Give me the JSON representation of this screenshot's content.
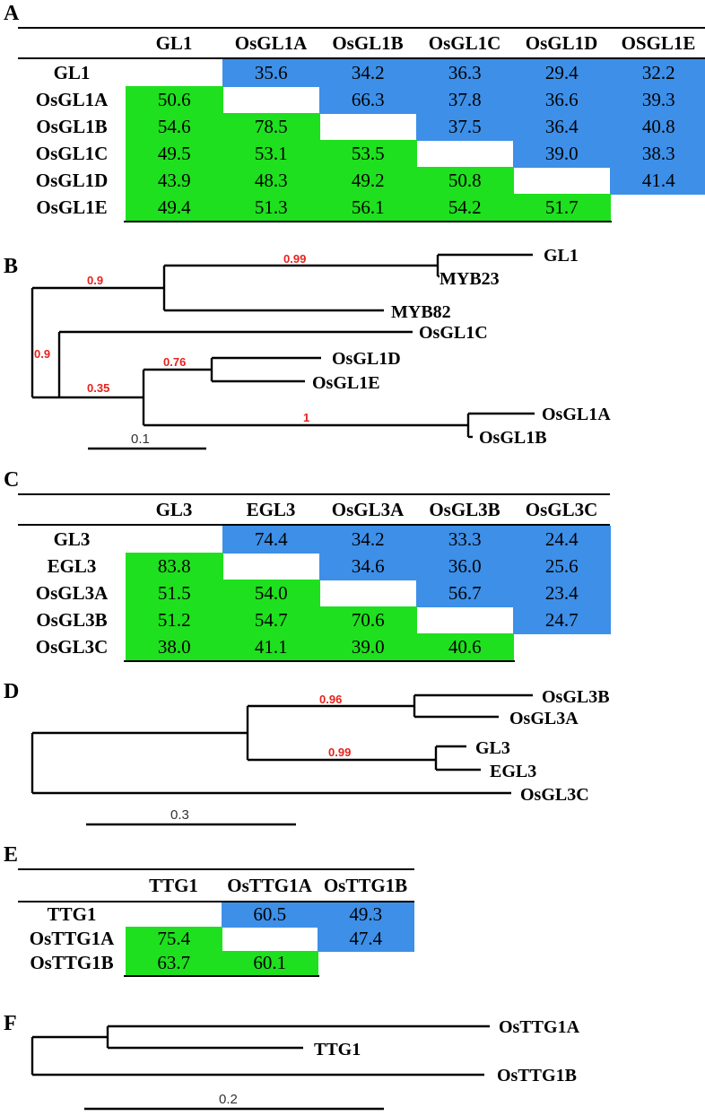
{
  "colors": {
    "upper": "#3d8fe8",
    "lower": "#1ee01e"
  },
  "panelA": {
    "letter": "A",
    "columns": [
      "GL1",
      "OsGL1A",
      "OsGL1B",
      "OsGL1C",
      "OsGL1D",
      "OSGL1E"
    ],
    "rows": [
      {
        "label": "GL1",
        "values": [
          "",
          "35.6",
          "34.2",
          "36.3",
          "29.4",
          "32.2"
        ]
      },
      {
        "label": "OsGL1A",
        "values": [
          "50.6",
          "",
          "66.3",
          "37.8",
          "36.6",
          "39.3"
        ]
      },
      {
        "label": "OsGL1B",
        "values": [
          "54.6",
          "78.5",
          "",
          "37.5",
          "36.4",
          "40.8"
        ]
      },
      {
        "label": "OsGL1C",
        "values": [
          "49.5",
          "53.1",
          "53.5",
          "",
          "39.0",
          "38.3"
        ]
      },
      {
        "label": "OsGL1D",
        "values": [
          "43.9",
          "48.3",
          "49.2",
          "50.8",
          "",
          "41.4"
        ]
      },
      {
        "label": "OsGL1E",
        "values": [
          "49.4",
          "51.3",
          "56.1",
          "54.2",
          "51.7",
          ""
        ]
      }
    ]
  },
  "panelB": {
    "letter": "B",
    "leaves": [
      "GL1",
      "MYB23",
      "MYB82",
      "OsGL1C",
      "OsGL1D",
      "OsGL1E",
      "OsGL1A",
      "OsGL1B"
    ],
    "supports": [
      "0.99",
      "0.9",
      "0.9",
      "0.76",
      "0.35",
      "1"
    ],
    "scale": "0.1"
  },
  "panelC": {
    "letter": "C",
    "columns": [
      "GL3",
      "EGL3",
      "OsGL3A",
      "OsGL3B",
      "OsGL3C"
    ],
    "rows": [
      {
        "label": "GL3",
        "values": [
          "",
          "74.4",
          "34.2",
          "33.3",
          "24.4"
        ]
      },
      {
        "label": "EGL3",
        "values": [
          "83.8",
          "",
          "34.6",
          "36.0",
          "25.6"
        ]
      },
      {
        "label": "OsGL3A",
        "values": [
          "51.5",
          "54.0",
          "",
          "56.7",
          "23.4"
        ]
      },
      {
        "label": "OsGL3B",
        "values": [
          "51.2",
          "54.7",
          "70.6",
          "",
          "24.7"
        ]
      },
      {
        "label": "OsGL3C",
        "values": [
          "38.0",
          "41.1",
          "39.0",
          "40.6",
          ""
        ]
      }
    ]
  },
  "panelD": {
    "letter": "D",
    "leaves": [
      "OsGL3B",
      "OsGL3A",
      "GL3",
      "EGL3",
      "OsGL3C"
    ],
    "supports": [
      "0.96",
      "0.99"
    ],
    "scale": "0.3"
  },
  "panelE": {
    "letter": "E",
    "columns": [
      "TTG1",
      "OsTTG1A",
      "OsTTG1B"
    ],
    "rows": [
      {
        "label": "TTG1",
        "values": [
          "",
          "60.5",
          "49.3"
        ]
      },
      {
        "label": "OsTTG1A",
        "values": [
          "75.4",
          "",
          "47.4"
        ]
      },
      {
        "label": "OsTTG1B",
        "values": [
          "63.7",
          "60.1",
          ""
        ]
      }
    ]
  },
  "panelF": {
    "letter": "F",
    "leaves": [
      "OsTTG1A",
      "TTG1",
      "OsTTG1B"
    ],
    "scale": "0.2"
  }
}
